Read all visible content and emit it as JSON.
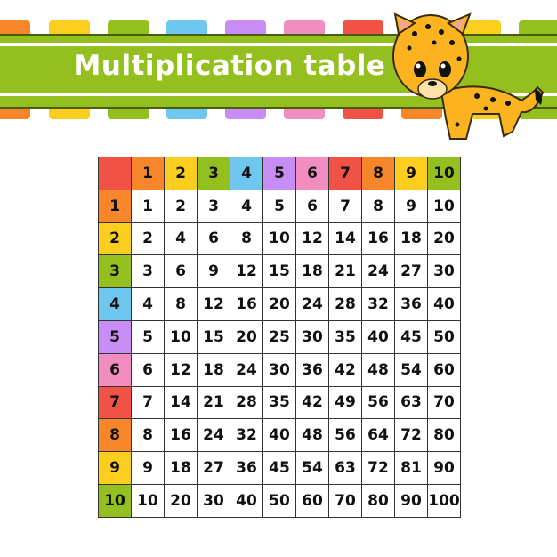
{
  "title": "Multiplication table",
  "colors": [
    "#f05246",
    "#f7862a",
    "#fbcd1f",
    "#93bf1f",
    "#6fc6ee",
    "#c88cf5",
    "#f18dbf",
    "#f05246",
    "#f7862a",
    "#fbcd1f",
    "#93bf1f"
  ],
  "banner_color": "#93bf1f",
  "mascot": "cheetah-cartoon",
  "table": {
    "header": [
      "",
      "1",
      "2",
      "3",
      "4",
      "5",
      "6",
      "7",
      "8",
      "9",
      "10"
    ],
    "rows": [
      [
        "1",
        "1",
        "2",
        "3",
        "4",
        "5",
        "6",
        "7",
        "8",
        "9",
        "10"
      ],
      [
        "2",
        "2",
        "4",
        "6",
        "8",
        "10",
        "12",
        "14",
        "16",
        "18",
        "20"
      ],
      [
        "3",
        "3",
        "6",
        "9",
        "12",
        "15",
        "18",
        "21",
        "24",
        "27",
        "30"
      ],
      [
        "4",
        "4",
        "8",
        "12",
        "16",
        "20",
        "24",
        "28",
        "32",
        "36",
        "40"
      ],
      [
        "5",
        "5",
        "10",
        "15",
        "20",
        "25",
        "30",
        "35",
        "40",
        "45",
        "50"
      ],
      [
        "6",
        "6",
        "12",
        "18",
        "24",
        "30",
        "36",
        "42",
        "48",
        "54",
        "60"
      ],
      [
        "7",
        "7",
        "14",
        "21",
        "28",
        "35",
        "42",
        "49",
        "56",
        "63",
        "70"
      ],
      [
        "8",
        "8",
        "16",
        "24",
        "32",
        "40",
        "48",
        "56",
        "64",
        "72",
        "80"
      ],
      [
        "9",
        "9",
        "18",
        "27",
        "36",
        "45",
        "54",
        "63",
        "72",
        "81",
        "90"
      ],
      [
        "10",
        "10",
        "20",
        "30",
        "40",
        "50",
        "60",
        "70",
        "80",
        "90",
        "100"
      ]
    ]
  }
}
